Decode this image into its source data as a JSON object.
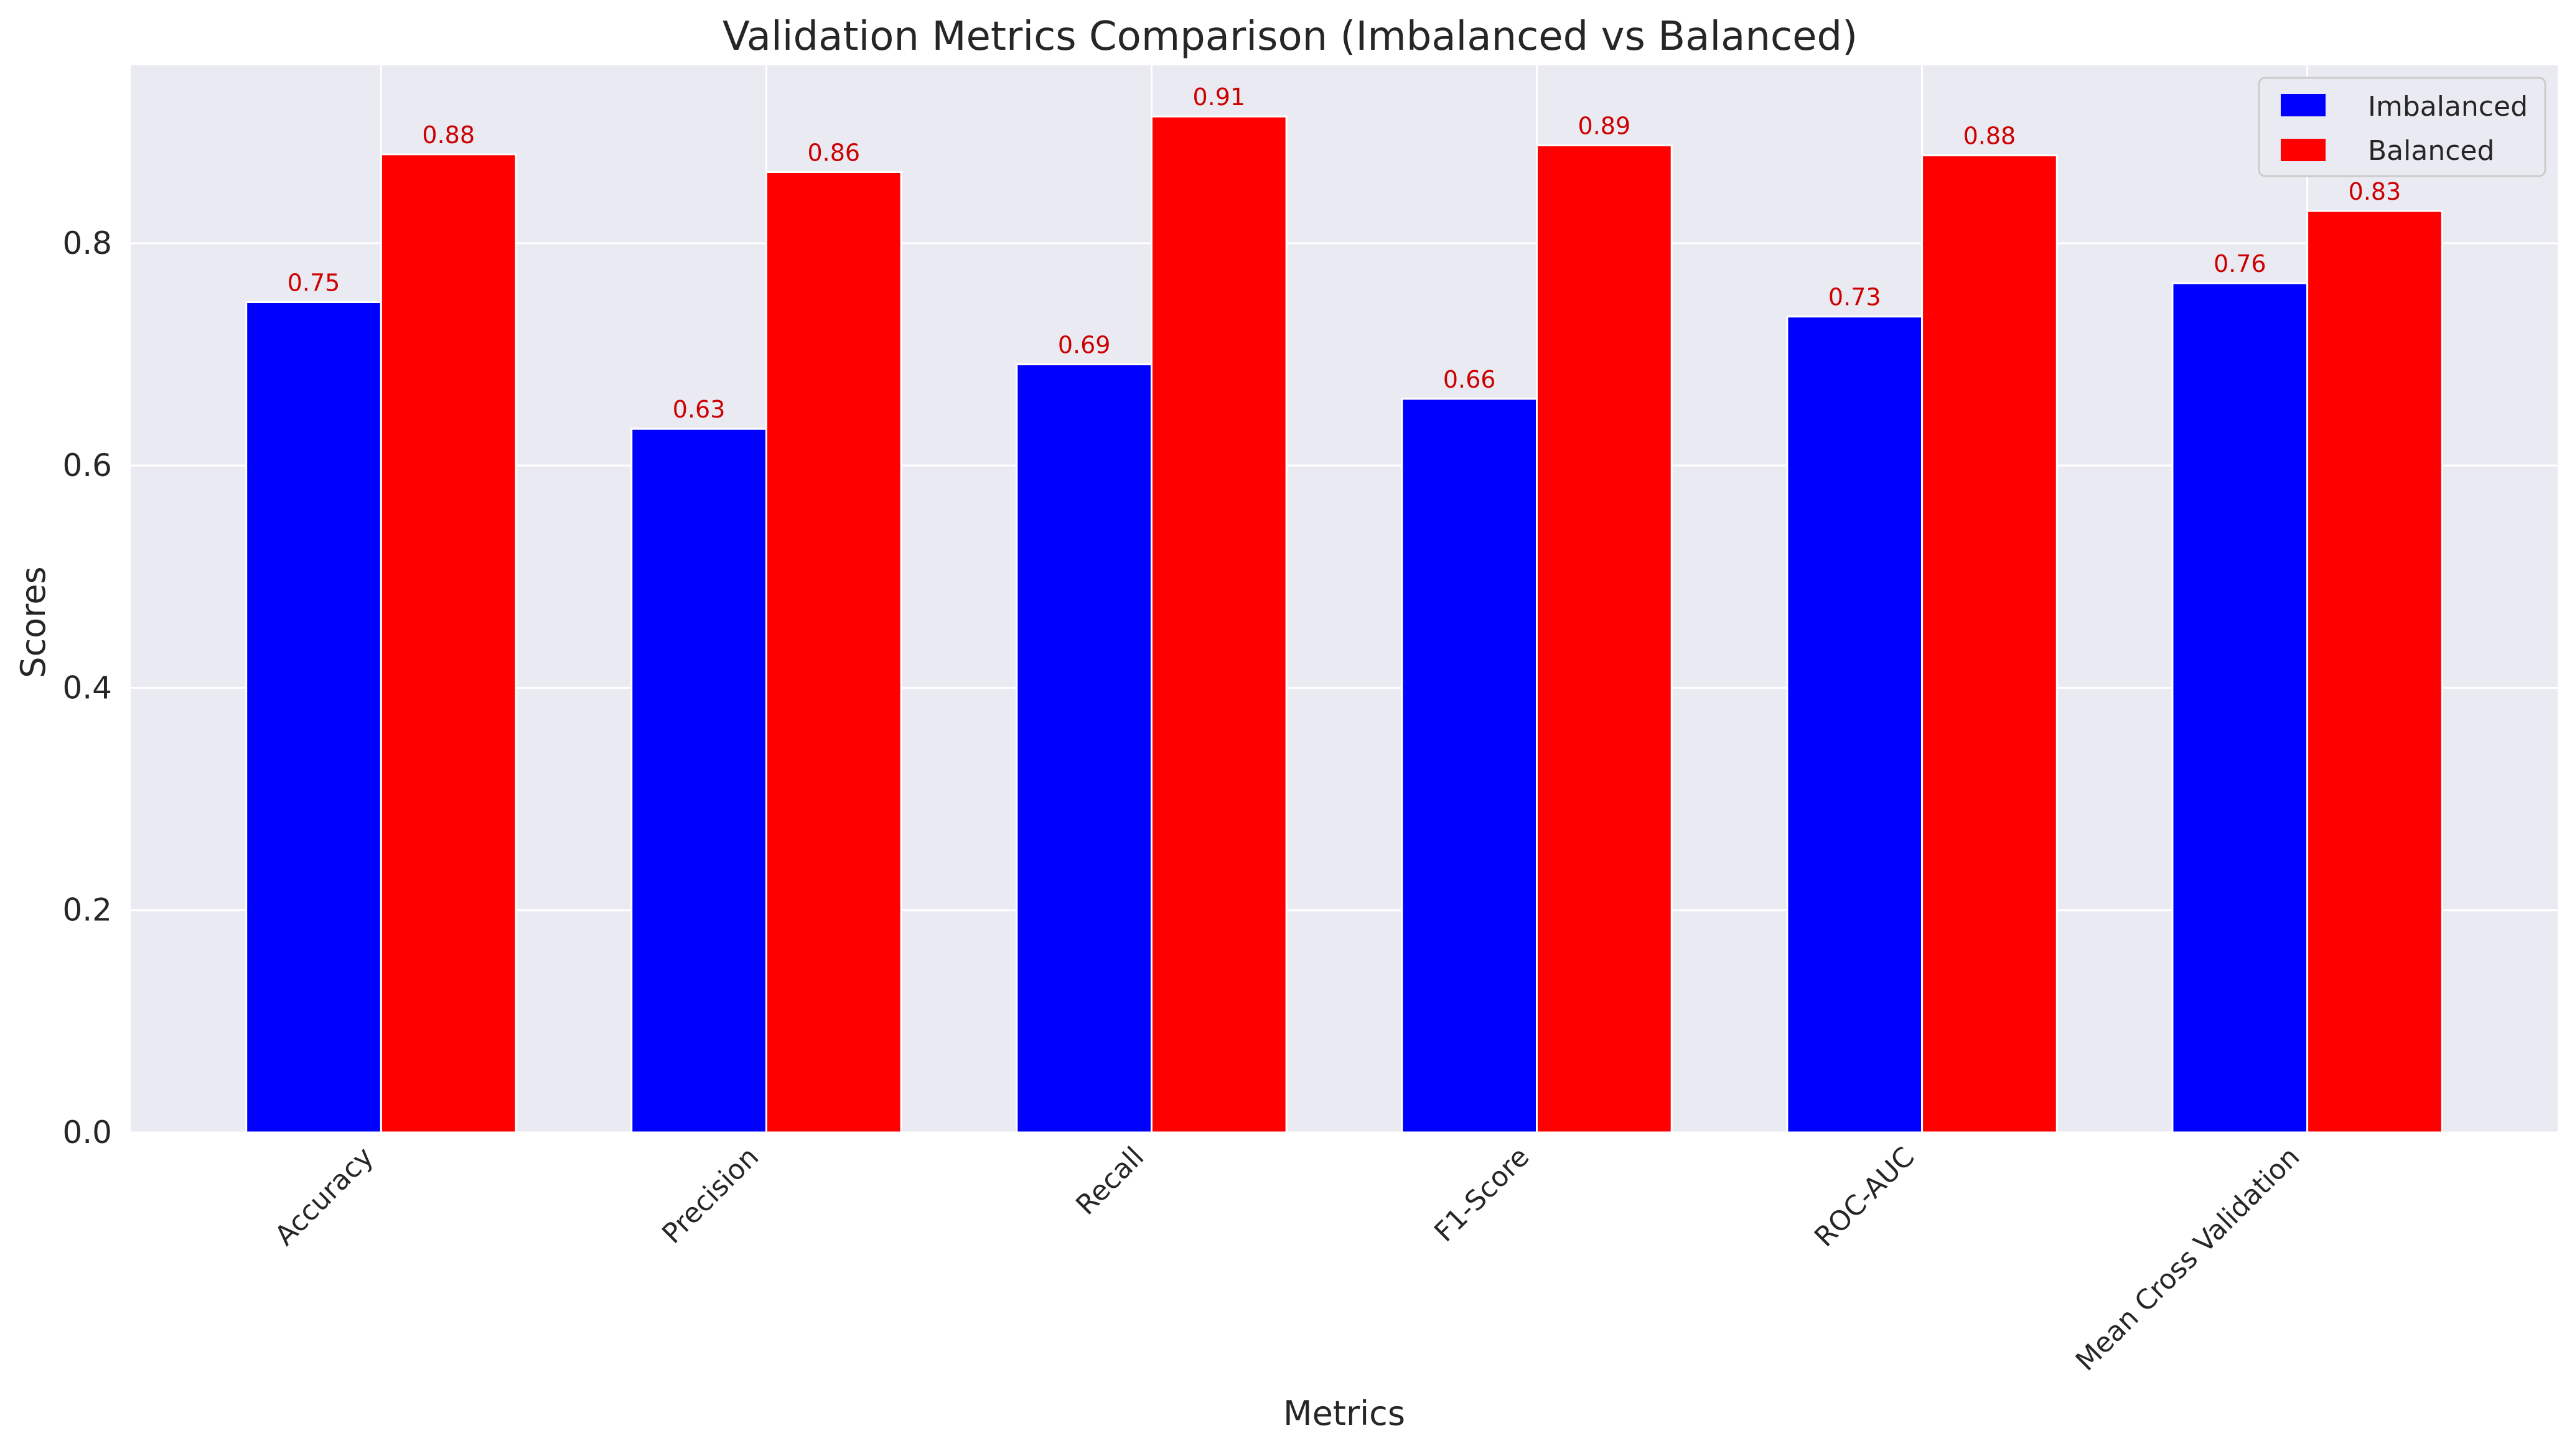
{
  "chart_data": {
    "type": "bar",
    "title": "Validation Metrics Comparison (Imbalanced vs Balanced)",
    "xlabel": "Metrics",
    "ylabel": "Scores",
    "categories": [
      "Accuracy",
      "Precision",
      "Recall",
      "F1-Score",
      "ROC-AUC",
      "Mean Cross Validation"
    ],
    "series": [
      {
        "name": "Imbalanced",
        "color": "#0000ff",
        "values": [
          0.747,
          0.633,
          0.691,
          0.66,
          0.734,
          0.764
        ],
        "labels": [
          "0.75",
          "0.63",
          "0.69",
          "0.66",
          "0.73",
          "0.76"
        ]
      },
      {
        "name": "Balanced",
        "color": "#ff0000",
        "values": [
          0.88,
          0.864,
          0.914,
          0.888,
          0.879,
          0.829
        ],
        "labels": [
          "0.88",
          "0.86",
          "0.91",
          "0.89",
          "0.88",
          "0.83"
        ]
      }
    ],
    "ylim": [
      0,
      0.96
    ],
    "yticks": [
      0.0,
      0.2,
      0.4,
      0.6,
      0.8
    ],
    "ytick_labels": [
      "0.0",
      "0.2",
      "0.4",
      "0.6",
      "0.8"
    ],
    "grid": true,
    "legend_position": "top-right",
    "data_label_color": "#cc0000",
    "plot_background": "#eaeaf2"
  }
}
